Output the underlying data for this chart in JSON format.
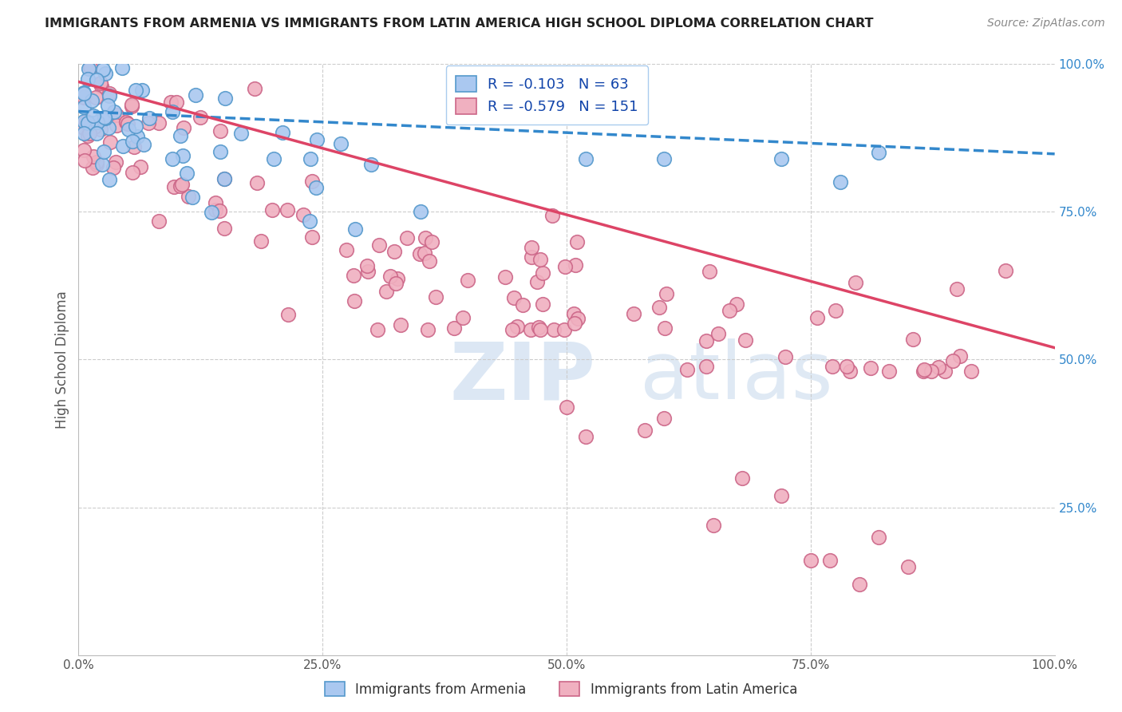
{
  "title": "IMMIGRANTS FROM ARMENIA VS IMMIGRANTS FROM LATIN AMERICA HIGH SCHOOL DIPLOMA CORRELATION CHART",
  "source": "Source: ZipAtlas.com",
  "ylabel": "High School Diploma",
  "xlabel": "",
  "watermark_zip": "ZIP",
  "watermark_atlas": "atlas",
  "legend_blue_r": "-0.103",
  "legend_blue_n": "63",
  "legend_pink_r": "-0.579",
  "legend_pink_n": "151",
  "xlim": [
    0.0,
    1.0
  ],
  "ylim": [
    0.0,
    1.0
  ],
  "blue_color": "#aac8f0",
  "blue_edge": "#5599cc",
  "blue_line_color": "#3388cc",
  "pink_color": "#f0b0c0",
  "pink_edge": "#cc6688",
  "pink_line_color": "#dd4466",
  "background_color": "#ffffff",
  "grid_color": "#cccccc",
  "title_color": "#222222",
  "axis_label_color": "#555555",
  "right_tick_color": "#3388cc",
  "legend_text_color": "#1144aa"
}
